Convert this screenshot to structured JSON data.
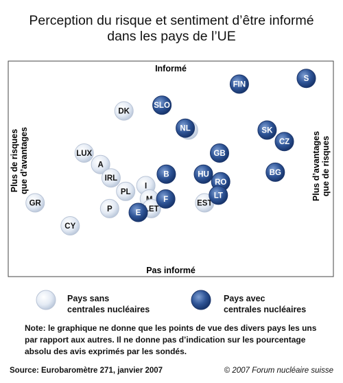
{
  "title_line1": "Perception du risque et sentiment d’être informé",
  "title_line2": "dans les pays de l’UE",
  "chart_data": {
    "type": "scatter",
    "axes": {
      "top": "Informé",
      "bottom": "Pas informé",
      "left_line1": "Plus de risques",
      "left_line2": "que d’avantages",
      "right_line1": "Plus d’avantages",
      "right_line2": "que de risques"
    },
    "xlim": [
      0,
      100
    ],
    "ylim": [
      0,
      100
    ],
    "series": [
      {
        "name": "Pays sans centrales nucléaires",
        "color": "#d6e0ee",
        "points": [
          {
            "label": "GR",
            "x": 4.5,
            "y": 31
          },
          {
            "label": "CY",
            "x": 16.5,
            "y": 19
          },
          {
            "label": "LUX",
            "x": 21.3,
            "y": 57
          },
          {
            "label": "A",
            "x": 26.9,
            "y": 51
          },
          {
            "label": "IRL",
            "x": 30.5,
            "y": 44
          },
          {
            "label": "DK",
            "x": 34.9,
            "y": 79
          },
          {
            "label": "PL",
            "x": 35.5,
            "y": 37
          },
          {
            "label": "P",
            "x": 30.0,
            "y": 28
          },
          {
            "label": "I",
            "x": 42.4,
            "y": 40
          },
          {
            "label": "M",
            "x": 43.6,
            "y": 33
          },
          {
            "label": "LET",
            "x": 44.3,
            "y": 28
          },
          {
            "label": "EST",
            "x": 62.5,
            "y": 31
          },
          {
            "label": "D",
            "x": 57.0,
            "y": 69
          }
        ]
      },
      {
        "name": "Pays avec centrales nucléaires",
        "color": "#2f5597",
        "points": [
          {
            "label": "S",
            "x": 97.3,
            "y": 96
          },
          {
            "label": "FIN",
            "x": 74.4,
            "y": 93
          },
          {
            "label": "SLO",
            "x": 47.9,
            "y": 82
          },
          {
            "label": "NL",
            "x": 55.9,
            "y": 70
          },
          {
            "label": "SK",
            "x": 83.9,
            "y": 69
          },
          {
            "label": "CZ",
            "x": 89.8,
            "y": 63
          },
          {
            "label": "GB",
            "x": 67.6,
            "y": 57
          },
          {
            "label": "BG",
            "x": 86.7,
            "y": 47
          },
          {
            "label": "B",
            "x": 49.4,
            "y": 46
          },
          {
            "label": "HU",
            "x": 62.1,
            "y": 46
          },
          {
            "label": "RO",
            "x": 68.0,
            "y": 42
          },
          {
            "label": "LT",
            "x": 67.2,
            "y": 35
          },
          {
            "label": "F",
            "x": 49.2,
            "y": 33
          },
          {
            "label": "E",
            "x": 39.8,
            "y": 26
          }
        ]
      }
    ]
  },
  "legend": {
    "without_line1": "Pays sans",
    "without_line2": "centrales nucléaires",
    "with_line1": "Pays avec",
    "with_line2": "centrales nucléaires"
  },
  "note": "Note: le graphique ne donne que les points de vue des divers pays les uns par rapport aux autres. Il ne donne pas d’indication sur les pourcentage absolu des avis exprimés par les sondés.",
  "source": "Source: Eurobaromètre 271, janvier 2007",
  "copyright": "© 2007 Forum nucléaire suisse"
}
